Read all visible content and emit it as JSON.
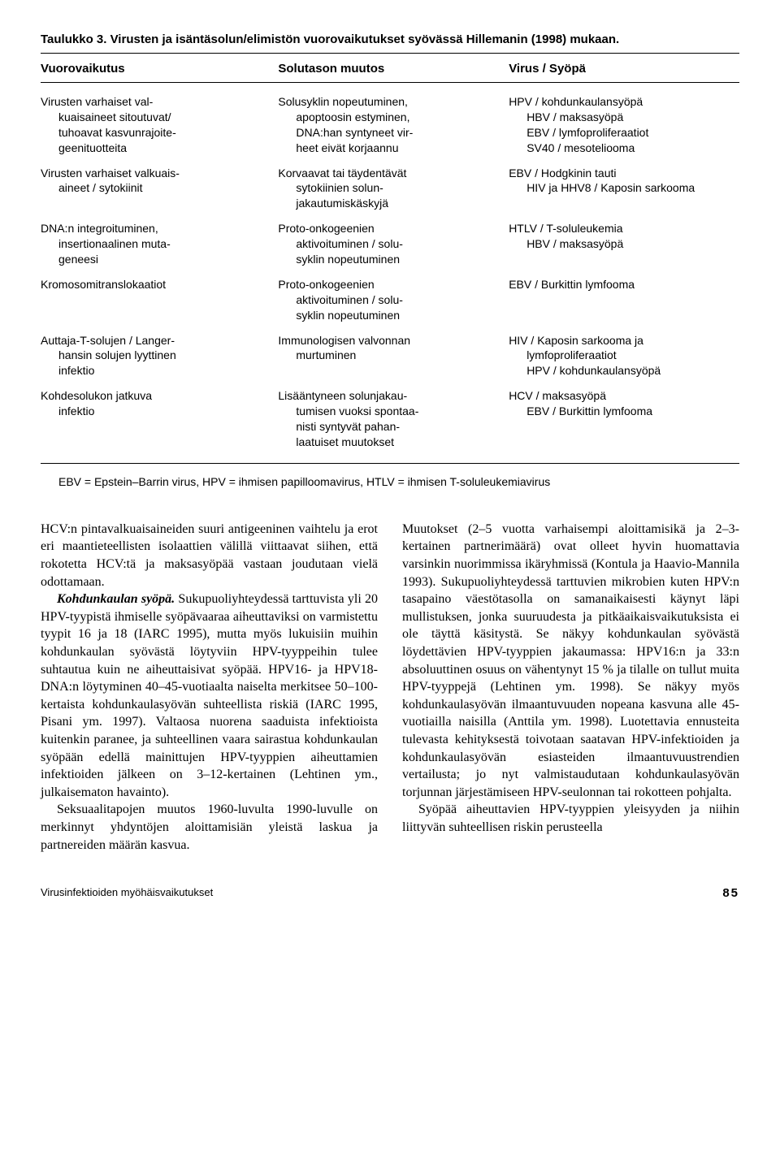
{
  "table": {
    "caption": "Taulukko 3. Virusten ja isäntäsolun/elimistön vuorovaikutukset syövässä Hillemanin (1998) mukaan.",
    "headers": [
      "Vuorovaikutus",
      "Solutason muutos",
      "Virus / Syöpä"
    ],
    "rows": [
      {
        "c1": "Virusten varhaiset val-\nkuaisaineet sitoutuvat/\ntuhoavat kasvunrajoite-\ngeenituotteita",
        "c2": "Solusyklin nopeutuminen,\napoptoosin estyminen,\nDNA:han syntyneet vir-\nheet eivät korjaannu",
        "c3": "HPV / kohdunkaulansyöpä\nHBV / maksasyöpä\nEBV / lymfoproliferaatiot\nSV40 / mesoteliooma"
      },
      {
        "c1": "Virusten varhaiset valkuais-\naineet / sytokiinit",
        "c2": "Korvaavat tai täydentävät\nsytokiinien solun-\njakautumiskäskyjä",
        "c3": "EBV / Hodgkinin tauti\nHIV ja HHV8 / Kaposin sarkooma"
      },
      {
        "c1": "DNA:n integroituminen,\ninsertionaalinen muta-\ngeneesi",
        "c2": "Proto-onkogeenien\naktivoituminen / solu-\nsyklin nopeutuminen",
        "c3": "HTLV / T-soluleukemia\nHBV / maksasyöpä"
      },
      {
        "c1": "Kromosomitranslokaatiot",
        "c2": "Proto-onkogeenien\naktivoituminen / solu-\nsyklin nopeutuminen",
        "c3": "EBV / Burkittin lymfooma"
      },
      {
        "c1": "Auttaja-T-solujen / Langer-\nhansin solujen lyyttinen\ninfektio",
        "c2": "Immunologisen valvonnan\nmurtuminen",
        "c3": "HIV / Kaposin sarkooma ja\nlymfoproliferaatiot\nHPV / kohdunkaulansyöpä"
      },
      {
        "c1": "Kohdesolukon jatkuva\ninfektio",
        "c2": "Lisääntyneen solunjakau-\ntumisen vuoksi spontaa-\nnisti syntyvät pahan-\nlaatuiset muutokset",
        "c3": "HCV / maksasyöpä\nEBV / Burkittin lymfooma"
      }
    ],
    "footnote": "EBV = Epstein–Barrin virus, HPV = ihmisen papilloomavirus, HTLV = ihmisen T-soluleukemiavirus"
  },
  "body": {
    "left": {
      "p1a": "HCV:n pintavalkuaisaineiden suuri antigeeninen vaihtelu ja erot eri maantieteellisten isolaattien välillä viittaavat siihen, että rokotetta HCV:tä ja maksasyöpää vastaan joudutaan vielä odottamaan.",
      "p2_lead": "Kohdunkaulan syöpä.",
      "p2_rest": " Sukupuoliyhteydessä tarttuvista yli 20 HPV-tyypistä ihmiselle syöpävaaraa aiheuttaviksi on varmistettu tyypit 16 ja 18 (IARC 1995), mutta myös lukuisiin muihin kohdunkaulan syövästä löytyviin HPV-tyyppeihin tulee suhtautua kuin ne aiheuttaisivat syöpää. HPV16- ja HPV18-DNA:n löytyminen 40–45-vuotiaalta naiselta merkitsee 50–100-kertaista kohdunkaulasyövän suhteellista riskiä (IARC 1995, Pisani ym. 1997). Valtaosa nuorena saaduista infektioista kuitenkin paranee, ja suhteellinen vaara sairastua kohdunkaulan syöpään edellä mainittujen HPV-tyyppien aiheuttamien infektioiden jälkeen on 3–12-kertainen (Lehtinen ym., julkaisematon havainto).",
      "p3": "Seksuaalitapojen muutos 1960-luvulta 1990-luvulle on merkinnyt yhdyntöjen aloittamisiän yleistä laskua ja partnereiden määrän kasvua."
    },
    "right": {
      "p1": "Muutokset (2–5 vuotta varhaisempi aloittamisikä ja 2–3-kertainen partnerimäärä) ovat olleet hyvin huomattavia varsinkin nuorimmissa ikäryhmissä (Kontula ja Haavio-Mannila 1993). Sukupuoliyhteydessä tarttuvien mikrobien kuten HPV:n tasapaino väestötasolla on samanaikaisesti käynyt läpi mullistuksen, jonka suuruudesta ja pitkäaikaisvaikutuksista ei ole täyttä käsitystä. Se näkyy kohdunkaulan syövästä löydettävien HPV-tyyppien jakaumassa: HPV16:n ja 33:n absoluuttinen osuus on vähentynyt 15 % ja tilalle on tullut muita HPV-tyyppejä (Lehtinen ym. 1998). Se näkyy myös kohdunkaulasyövän ilmaantuvuuden nopeana kasvuna alle 45-vuotiailla naisilla (Anttila ym. 1998). Luotettavia ennusteita tulevasta kehityksestä toivotaan saatavan HPV-infektioiden ja kohdunkaulasyövän esiasteiden ilmaantuvuustrendien vertailusta; jo nyt valmistaudutaan kohdunkaulasyövän torjunnan järjestämiseen HPV-seulonnan tai rokotteen pohjalta.",
      "p2": "Syöpää aiheuttavien HPV-tyyppien yleisyyden ja niihin liittyvän suhteellisen riskin perusteella"
    }
  },
  "footer": {
    "left": "Virusinfektioiden myöhäisvaikutukset",
    "page": "85"
  }
}
